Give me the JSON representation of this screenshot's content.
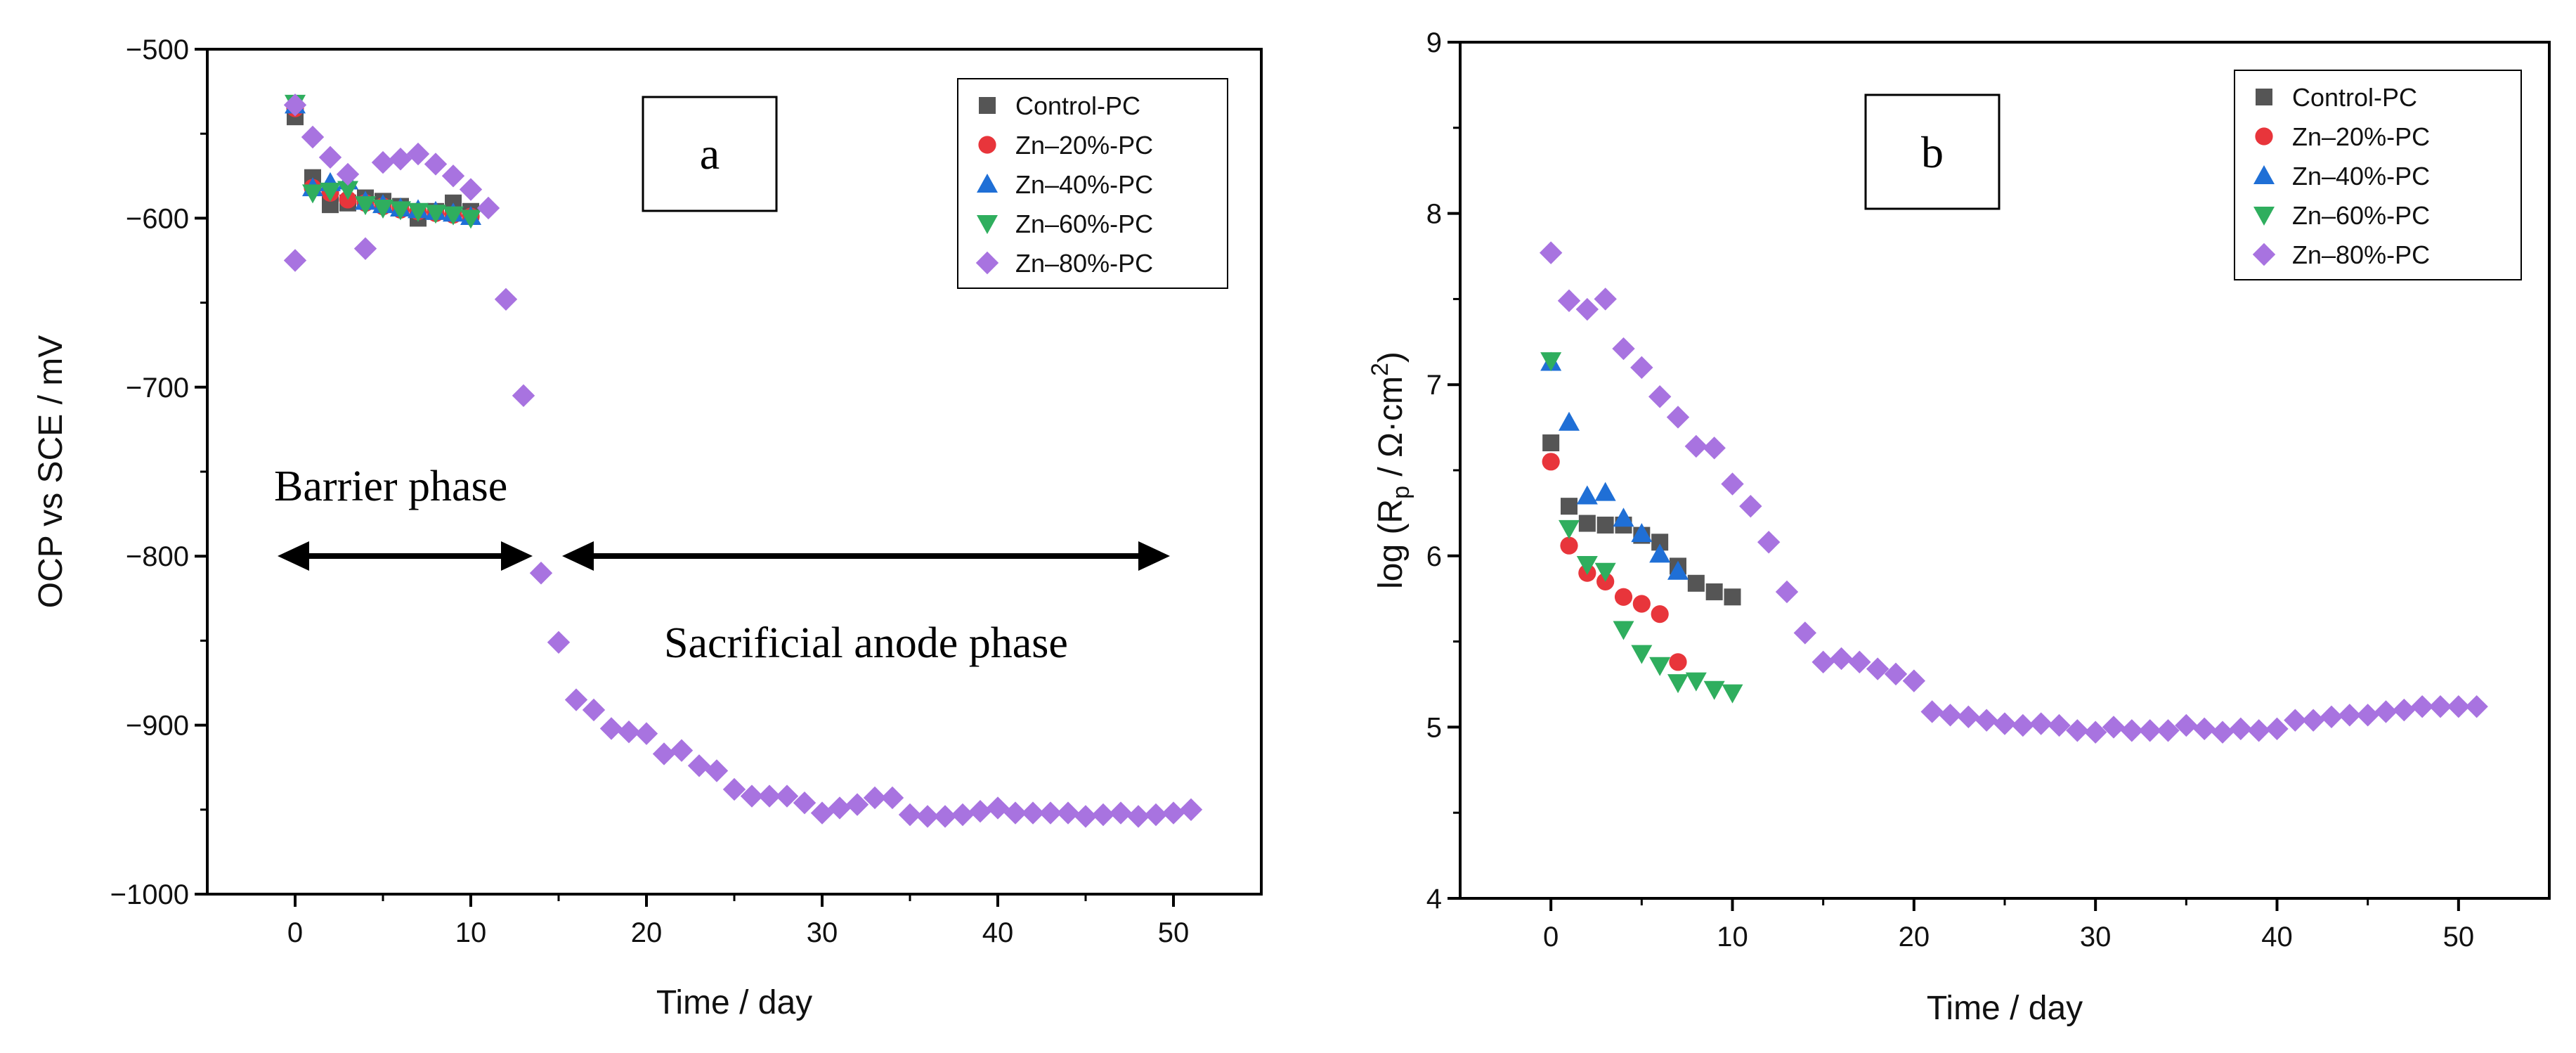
{
  "colors": {
    "Control-PC": "#555555",
    "Zn–20%-PC": "#e8353b",
    "Zn–40%-PC": "#1f6fd6",
    "Zn–60%-PC": "#2fae5e",
    "Zn–80%-PC": "#a873e0"
  },
  "markers": {
    "Control-PC": "square",
    "Zn–20%-PC": "circle",
    "Zn–40%-PC": "triangle-up",
    "Zn–60%-PC": "triangle-down",
    "Zn–80%-PC": "diamond"
  },
  "panels": [
    {
      "id": "a",
      "panel_label": "a",
      "ylabel": "OCP vs SCE / mV",
      "phase_labels": {
        "barrier": "Barrier phase",
        "sacrificial": "Sacrificial anode phase"
      }
    },
    {
      "id": "b",
      "panel_label": "b",
      "ylabel_main": "log (R",
      "ylabel_sub": "p",
      "ylabel_mid": " / Ω·cm",
      "ylabel_sup": "2",
      "ylabel_end": ")"
    }
  ],
  "chart_data": [
    {
      "type": "scatter",
      "title": "",
      "xlabel": "Time / day",
      "ylabel": "OCP vs SCE / mV",
      "xlim": [
        -5,
        55
      ],
      "ylim": [
        -1000,
        -500
      ],
      "xticks": [
        0,
        10,
        20,
        30,
        40,
        50
      ],
      "yticks": [
        -1000,
        -900,
        -800,
        -700,
        -600,
        -500
      ],
      "legend_position": "top-right",
      "annotations": [
        {
          "text": "Barrier phase",
          "arrow_from_x": -1,
          "arrow_to_x": 13,
          "y": -800
        },
        {
          "text": "Sacrificial anode phase",
          "arrow_from_x": 15,
          "arrow_to_x": 49,
          "y": -800
        }
      ],
      "series": [
        {
          "name": "Control-PC",
          "x": [
            0,
            1,
            2,
            3,
            4,
            5,
            6,
            7,
            8,
            9,
            10
          ],
          "y": [
            -540,
            -576,
            -592,
            -591,
            -588,
            -590,
            -593,
            -600,
            -596,
            -591,
            -596
          ]
        },
        {
          "name": "Zn–20%-PC",
          "x": [
            0,
            1,
            2,
            3,
            4,
            5,
            6,
            7,
            8,
            9,
            10
          ],
          "y": [
            -535,
            -582,
            -585,
            -589,
            -591,
            -593,
            -595,
            -596,
            -597,
            -598,
            -599
          ]
        },
        {
          "name": "Zn–40%-PC",
          "x": [
            0,
            1,
            2,
            3,
            4,
            5,
            6,
            7,
            8,
            9,
            10
          ],
          "y": [
            -533,
            -582,
            -579,
            -578,
            -590,
            -592,
            -594,
            -595,
            -596,
            -597,
            -599
          ]
        },
        {
          "name": "Zn–60%-PC",
          "x": [
            0,
            1,
            2,
            3,
            4,
            5,
            6,
            7,
            8,
            9,
            10
          ],
          "y": [
            -532,
            -585,
            -584,
            -583,
            -592,
            -594,
            -595,
            -596,
            -597,
            -598,
            -600
          ]
        },
        {
          "name": "Zn–80%-PC",
          "x": [
            0,
            0,
            1,
            2,
            3,
            4,
            5,
            6,
            7,
            8,
            9,
            10,
            11,
            12,
            13,
            14,
            15,
            16,
            17,
            18,
            19,
            20,
            21,
            22,
            23,
            24,
            25,
            26,
            27,
            28,
            29,
            30,
            31,
            32,
            33,
            34,
            35,
            36,
            37,
            38,
            39,
            40,
            41,
            42,
            43,
            44,
            45,
            46,
            47,
            48,
            49,
            50,
            51
          ],
          "y": [
            -533,
            -625,
            -552,
            -564,
            -574,
            -618,
            -567,
            -565,
            -562,
            -568,
            -575,
            -583,
            -594,
            -648,
            -705,
            -810,
            -851,
            -885,
            -891,
            -902,
            -904,
            -905,
            -917,
            -915,
            -924,
            -927,
            -938,
            -942,
            -942,
            -942,
            -946,
            -952,
            -949,
            -947,
            -943,
            -943,
            -953,
            -954,
            -954,
            -953,
            -951,
            -949,
            -952,
            -952,
            -952,
            -952,
            -954,
            -953,
            -952,
            -954,
            -953,
            -952,
            -950
          ]
        }
      ]
    },
    {
      "type": "scatter",
      "title": "",
      "xlabel": "Time / day",
      "ylabel": "log (Rp / Ω·cm2)",
      "xlim": [
        -5,
        55
      ],
      "ylim": [
        4,
        9
      ],
      "xticks": [
        0,
        10,
        20,
        30,
        40,
        50
      ],
      "yticks": [
        4,
        5,
        6,
        7,
        8,
        9
      ],
      "legend_position": "top-right",
      "series": [
        {
          "name": "Control-PC",
          "x": [
            0,
            1,
            2,
            3,
            4,
            5,
            6,
            7,
            8,
            9,
            10
          ],
          "y": [
            6.66,
            6.29,
            6.19,
            6.18,
            6.18,
            6.12,
            6.08,
            5.94,
            5.84,
            5.79,
            5.76
          ]
        },
        {
          "name": "Zn–20%-PC",
          "x": [
            0,
            1,
            2,
            3,
            4,
            5,
            6,
            7
          ],
          "y": [
            6.55,
            6.06,
            5.9,
            5.85,
            5.76,
            5.72,
            5.66,
            5.38
          ]
        },
        {
          "name": "Zn–40%-PC",
          "x": [
            0,
            1,
            2,
            3,
            4,
            5,
            6,
            7
          ],
          "y": [
            7.13,
            6.78,
            6.35,
            6.37,
            6.22,
            6.13,
            6.01,
            5.91
          ]
        },
        {
          "name": "Zn–60%-PC",
          "x": [
            0,
            1,
            2,
            3,
            4,
            5,
            6,
            7,
            8,
            9,
            10
          ],
          "y": [
            7.14,
            6.16,
            5.95,
            5.91,
            5.57,
            5.43,
            5.36,
            5.26,
            5.27,
            5.22,
            5.2
          ]
        },
        {
          "name": "Zn–80%-PC",
          "x": [
            0,
            1,
            2,
            3,
            4,
            5,
            6,
            7,
            8,
            9,
            10,
            11,
            12,
            13,
            14,
            15,
            16,
            17,
            18,
            19,
            20,
            21,
            22,
            23,
            24,
            25,
            26,
            27,
            28,
            29,
            30,
            31,
            32,
            33,
            34,
            35,
            36,
            37,
            38,
            39,
            40,
            41,
            42,
            43,
            44,
            45,
            46,
            47,
            48,
            49,
            50,
            51
          ],
          "y": [
            7.77,
            7.49,
            7.44,
            7.5,
            7.21,
            7.1,
            6.93,
            6.81,
            6.64,
            6.63,
            6.42,
            6.29,
            6.08,
            5.79,
            5.55,
            5.38,
            5.4,
            5.38,
            5.34,
            5.31,
            5.27,
            5.09,
            5.07,
            5.06,
            5.04,
            5.02,
            5.01,
            5.02,
            5.01,
            4.98,
            4.97,
            5.0,
            4.98,
            4.98,
            4.98,
            5.01,
            4.99,
            4.97,
            4.99,
            4.98,
            4.99,
            5.04,
            5.04,
            5.06,
            5.07,
            5.07,
            5.09,
            5.1,
            5.12,
            5.12,
            5.12,
            5.12
          ]
        }
      ]
    }
  ]
}
